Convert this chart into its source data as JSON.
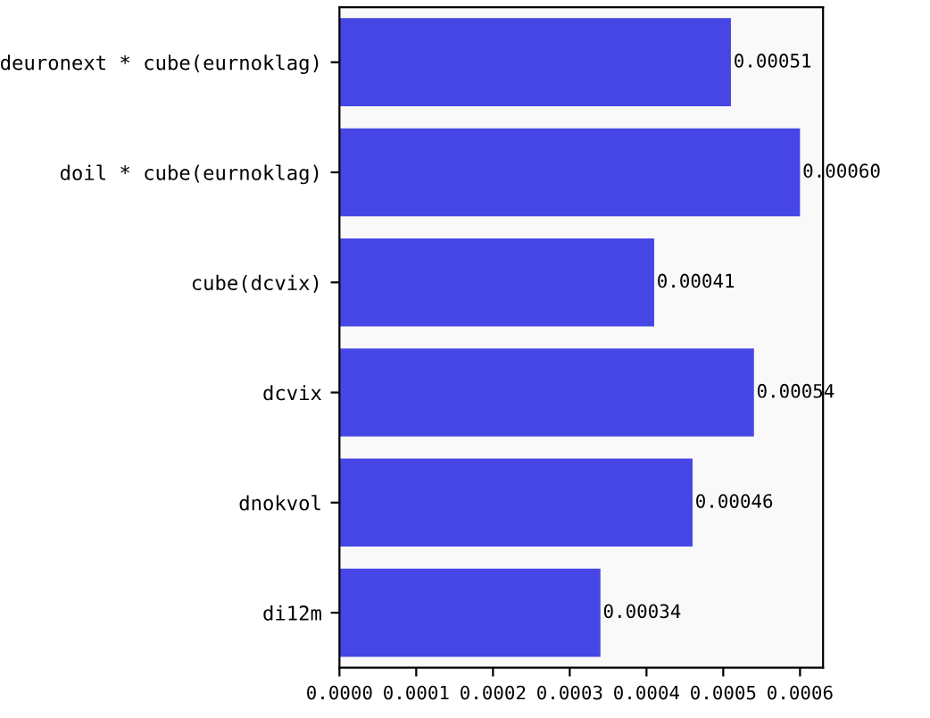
{
  "chart_data": {
    "type": "bar",
    "orientation": "horizontal",
    "categories": [
      "deuronext * cube(eurnoklag)",
      "doil * cube(eurnoklag)",
      "cube(dcvix)",
      "dcvix",
      "dnokvol",
      "di12m"
    ],
    "values": [
      0.00051,
      0.0006,
      0.00041,
      0.00054,
      0.00046,
      0.00034
    ],
    "value_labels": [
      "0.00051",
      "0.00060",
      "0.00041",
      "0.00054",
      "0.00046",
      "0.00034"
    ],
    "color": "#4646e6",
    "xlim": [
      0,
      0.00063
    ],
    "xticks": [
      {
        "value": 0,
        "label": "0.0000"
      },
      {
        "value": 0.0001,
        "label": "0.0001"
      },
      {
        "value": 0.0002,
        "label": "0.0002"
      },
      {
        "value": 0.0003,
        "label": "0.0003"
      },
      {
        "value": 0.0004,
        "label": "0.0004"
      },
      {
        "value": 0.0005,
        "label": "0.0005"
      },
      {
        "value": 0.0006,
        "label": "0.0006"
      }
    ],
    "grid": false
  }
}
